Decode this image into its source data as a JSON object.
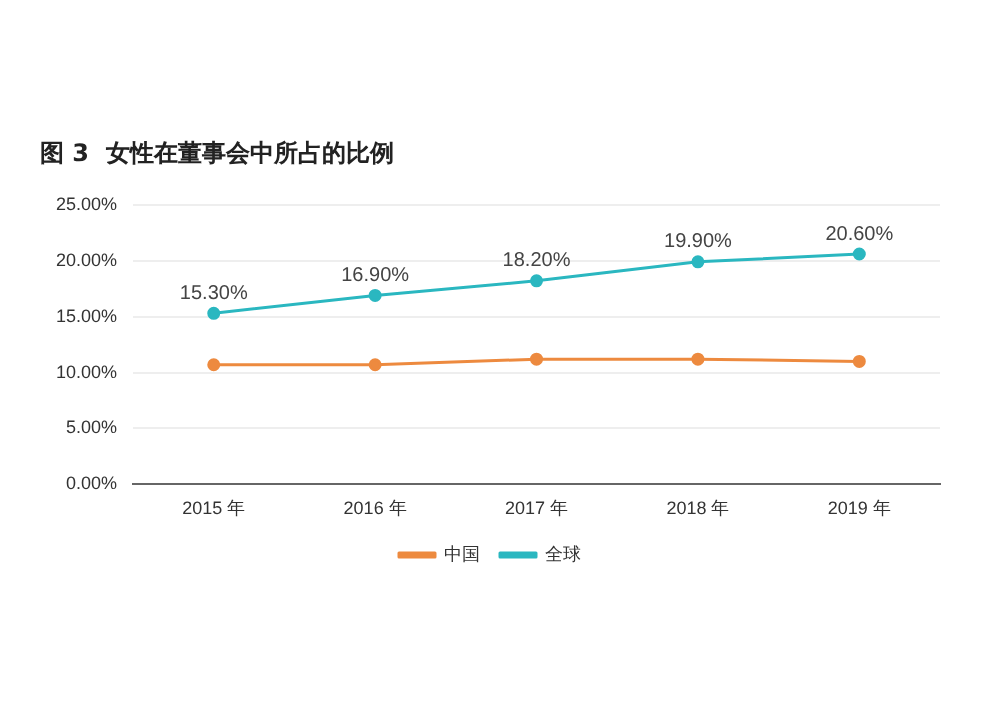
{
  "chart_data": {
    "type": "line",
    "title": "图 3  女性在董事会中所占的比例",
    "categories": [
      "2015 年",
      "2016 年",
      "2017 年",
      "2018 年",
      "2019 年"
    ],
    "series": [
      {
        "name": "中国",
        "color": "#ed8a3f",
        "values": [
          10.7,
          10.7,
          11.2,
          11.2,
          11.0
        ]
      },
      {
        "name": "全球",
        "color": "#2ab7c0",
        "values": [
          15.3,
          16.9,
          18.2,
          19.9,
          20.6
        ],
        "value_labels": [
          "15.30%",
          "16.90%",
          "18.20%",
          "19.90%",
          "20.60%"
        ]
      }
    ],
    "ylim": [
      0,
      25
    ],
    "yticks": [
      {
        "value": 0,
        "label": "0.00%"
      },
      {
        "value": 5,
        "label": "5.00%"
      },
      {
        "value": 10,
        "label": "10.00%"
      },
      {
        "value": 15,
        "label": "15.00%"
      },
      {
        "value": 20,
        "label": "20.00%"
      },
      {
        "value": 25,
        "label": "25.00%"
      }
    ],
    "grid": "y",
    "legend": "bottom",
    "marker": "circle",
    "line_style": "solid"
  }
}
